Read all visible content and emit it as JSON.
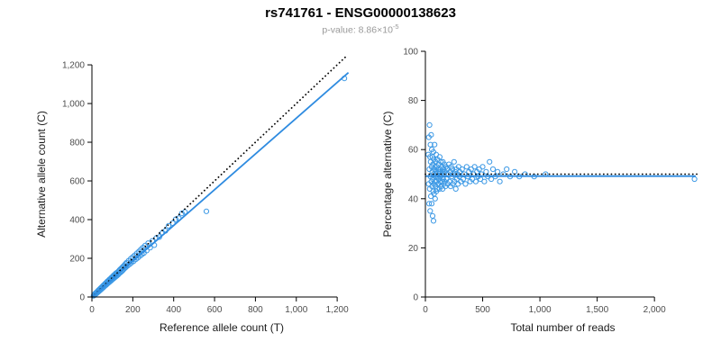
{
  "header": {
    "title": "rs741761 - ENSG00000138623",
    "pvalue_prefix": "p-value: 8.86×10",
    "pvalue_exponent": "-5"
  },
  "colors": {
    "point": "#3d99e5",
    "regression": "#2e8be0",
    "identity": "#000000",
    "tick_text": "#4d4d4d",
    "axis_line": "#000000",
    "subtitle": "#999999"
  },
  "chart_data": [
    {
      "type": "scatter",
      "name": "allele-counts-scatter",
      "xlabel": "Reference allele count (T)",
      "ylabel": "Alternative allele count (C)",
      "xlim": [
        0,
        1270
      ],
      "ylim": [
        0,
        1270
      ],
      "xticks": {
        "values": [
          0,
          200,
          400,
          600,
          800,
          1000,
          1200
        ],
        "labels": [
          "0",
          "200",
          "400",
          "600",
          "800",
          "1,000",
          "1,200"
        ]
      },
      "yticks": {
        "values": [
          0,
          200,
          400,
          600,
          800,
          1000,
          1200
        ],
        "labels": [
          "0",
          "200",
          "400",
          "600",
          "800",
          "1,000",
          "1,200"
        ]
      },
      "grid": false,
      "legend": "none",
      "points": [
        [
          8,
          6
        ],
        [
          10,
          11
        ],
        [
          12,
          9
        ],
        [
          14,
          15
        ],
        [
          15,
          12
        ],
        [
          16,
          18
        ],
        [
          18,
          15
        ],
        [
          20,
          21
        ],
        [
          21,
          17
        ],
        [
          22,
          24
        ],
        [
          24,
          20
        ],
        [
          25,
          27
        ],
        [
          26,
          22
        ],
        [
          28,
          29
        ],
        [
          30,
          25
        ],
        [
          30,
          33
        ],
        [
          32,
          28
        ],
        [
          34,
          36
        ],
        [
          35,
          30
        ],
        [
          36,
          39
        ],
        [
          38,
          33
        ],
        [
          40,
          42
        ],
        [
          41,
          36
        ],
        [
          42,
          45
        ],
        [
          44,
          38
        ],
        [
          45,
          48
        ],
        [
          46,
          41
        ],
        [
          48,
          51
        ],
        [
          50,
          44
        ],
        [
          51,
          54
        ],
        [
          52,
          47
        ],
        [
          54,
          57
        ],
        [
          55,
          49
        ],
        [
          56,
          60
        ],
        [
          58,
          52
        ],
        [
          60,
          63
        ],
        [
          61,
          55
        ],
        [
          62,
          66
        ],
        [
          64,
          58
        ],
        [
          65,
          69
        ],
        [
          66,
          60
        ],
        [
          68,
          72
        ],
        [
          70,
          63
        ],
        [
          71,
          75
        ],
        [
          72,
          66
        ],
        [
          74,
          78
        ],
        [
          75,
          68
        ],
        [
          76,
          81
        ],
        [
          78,
          71
        ],
        [
          80,
          84
        ],
        [
          82,
          74
        ],
        [
          84,
          88
        ],
        [
          85,
          77
        ],
        [
          86,
          91
        ],
        [
          88,
          80
        ],
        [
          90,
          94
        ],
        [
          92,
          83
        ],
        [
          94,
          98
        ],
        [
          95,
          86
        ],
        [
          96,
          101
        ],
        [
          98,
          89
        ],
        [
          100,
          104
        ],
        [
          102,
          92
        ],
        [
          104,
          108
        ],
        [
          105,
          95
        ],
        [
          106,
          111
        ],
        [
          108,
          98
        ],
        [
          110,
          114
        ],
        [
          112,
          101
        ],
        [
          114,
          118
        ],
        [
          115,
          104
        ],
        [
          116,
          121
        ],
        [
          118,
          107
        ],
        [
          120,
          124
        ],
        [
          122,
          110
        ],
        [
          125,
          128
        ],
        [
          128,
          115
        ],
        [
          130,
          133
        ],
        [
          132,
          120
        ],
        [
          135,
          139
        ],
        [
          138,
          125
        ],
        [
          140,
          144
        ],
        [
          143,
          130
        ],
        [
          145,
          150
        ],
        [
          148,
          135
        ],
        [
          150,
          155
        ],
        [
          153,
          140
        ],
        [
          155,
          160
        ],
        [
          158,
          146
        ],
        [
          160,
          166
        ],
        [
          163,
          151
        ],
        [
          165,
          172
        ],
        [
          168,
          156
        ],
        [
          170,
          178
        ],
        [
          175,
          162
        ],
        [
          180,
          188
        ],
        [
          185,
          170
        ],
        [
          190,
          198
        ],
        [
          195,
          178
        ],
        [
          200,
          207
        ],
        [
          205,
          186
        ],
        [
          210,
          216
        ],
        [
          215,
          195
        ],
        [
          220,
          226
        ],
        [
          225,
          203
        ],
        [
          230,
          236
        ],
        [
          235,
          212
        ],
        [
          240,
          246
        ],
        [
          245,
          220
        ],
        [
          250,
          256
        ],
        [
          255,
          228
        ],
        [
          260,
          266
        ],
        [
          268,
          240
        ],
        [
          275,
          278
        ],
        [
          285,
          255
        ],
        [
          295,
          290
        ],
        [
          305,
          268
        ],
        [
          315,
          305
        ],
        [
          330,
          310
        ],
        [
          345,
          332
        ],
        [
          360,
          342
        ],
        [
          375,
          368
        ],
        [
          395,
          382
        ],
        [
          410,
          402
        ],
        [
          425,
          408
        ],
        [
          440,
          432
        ],
        [
          455,
          440
        ],
        [
          560,
          443
        ],
        [
          1235,
          1130
        ]
      ],
      "lines": [
        {
          "role": "identity",
          "style": "dotted",
          "color": "#000000",
          "from": [
            0,
            0
          ],
          "to": [
            1250,
            1250
          ]
        },
        {
          "role": "regression",
          "style": "solid",
          "color": "#2e8be0",
          "from": [
            0,
            0
          ],
          "to": [
            1255,
            1160
          ]
        }
      ]
    },
    {
      "type": "scatter",
      "name": "percentage-alternative-scatter",
      "xlabel": "Total number of reads",
      "ylabel": "Percentage alternative (C)",
      "xlim": [
        0,
        2400
      ],
      "ylim": [
        0,
        100
      ],
      "xticks": {
        "values": [
          0,
          500,
          1000,
          1500,
          2000
        ],
        "labels": [
          "0",
          "500",
          "1,000",
          "1,500",
          "2,000"
        ]
      },
      "yticks": {
        "values": [
          0,
          20,
          40,
          60,
          80,
          100
        ],
        "labels": [
          "0",
          "20",
          "40",
          "60",
          "80",
          "100"
        ]
      },
      "grid": false,
      "legend": "none",
      "points": [
        [
          25,
          58
        ],
        [
          28,
          46
        ],
        [
          30,
          65
        ],
        [
          32,
          38
        ],
        [
          35,
          52
        ],
        [
          36,
          70
        ],
        [
          38,
          44
        ],
        [
          40,
          57
        ],
        [
          42,
          35
        ],
        [
          44,
          62
        ],
        [
          45,
          49
        ],
        [
          46,
          55
        ],
        [
          48,
          41
        ],
        [
          50,
          66
        ],
        [
          52,
          47
        ],
        [
          54,
          53
        ],
        [
          55,
          38
        ],
        [
          56,
          60
        ],
        [
          58,
          45
        ],
        [
          60,
          51
        ],
        [
          62,
          57
        ],
        [
          63,
          33
        ],
        [
          64,
          48
        ],
        [
          66,
          54
        ],
        [
          68,
          43
        ],
        [
          70,
          59
        ],
        [
          71,
          31
        ],
        [
          72,
          50
        ],
        [
          74,
          46
        ],
        [
          75,
          56
        ],
        [
          76,
          42
        ],
        [
          78,
          52
        ],
        [
          80,
          62
        ],
        [
          82,
          47
        ],
        [
          84,
          53
        ],
        [
          85,
          40
        ],
        [
          86,
          49
        ],
        [
          88,
          55
        ],
        [
          90,
          45
        ],
        [
          92,
          51
        ],
        [
          94,
          58
        ],
        [
          95,
          43
        ],
        [
          96,
          50
        ],
        [
          98,
          47
        ],
        [
          100,
          53
        ],
        [
          103,
          44
        ],
        [
          105,
          56
        ],
        [
          108,
          49
        ],
        [
          110,
          52
        ],
        [
          113,
          46
        ],
        [
          115,
          54
        ],
        [
          118,
          48
        ],
        [
          120,
          51
        ],
        [
          123,
          44
        ],
        [
          125,
          57
        ],
        [
          128,
          47
        ],
        [
          130,
          52
        ],
        [
          133,
          49
        ],
        [
          135,
          55
        ],
        [
          138,
          45
        ],
        [
          140,
          50
        ],
        [
          143,
          53
        ],
        [
          145,
          47
        ],
        [
          148,
          51
        ],
        [
          150,
          44
        ],
        [
          153,
          55
        ],
        [
          155,
          48
        ],
        [
          158,
          52
        ],
        [
          160,
          46
        ],
        [
          163,
          50
        ],
        [
          165,
          54
        ],
        [
          168,
          47
        ],
        [
          170,
          51
        ],
        [
          175,
          45
        ],
        [
          180,
          53
        ],
        [
          185,
          48
        ],
        [
          190,
          52
        ],
        [
          195,
          46
        ],
        [
          200,
          50
        ],
        [
          205,
          54
        ],
        [
          210,
          47
        ],
        [
          215,
          51
        ],
        [
          220,
          45
        ],
        [
          225,
          53
        ],
        [
          230,
          49
        ],
        [
          235,
          52
        ],
        [
          240,
          46
        ],
        [
          245,
          50
        ],
        [
          250,
          55
        ],
        [
          255,
          47
        ],
        [
          260,
          51
        ],
        [
          265,
          44
        ],
        [
          270,
          52
        ],
        [
          275,
          48
        ],
        [
          280,
          50
        ],
        [
          285,
          46
        ],
        [
          290,
          53
        ],
        [
          295,
          49
        ],
        [
          300,
          51
        ],
        [
          310,
          47
        ],
        [
          320,
          52
        ],
        [
          330,
          48
        ],
        [
          340,
          50
        ],
        [
          350,
          46
        ],
        [
          360,
          53
        ],
        [
          370,
          49
        ],
        [
          380,
          51
        ],
        [
          390,
          47
        ],
        [
          400,
          52
        ],
        [
          410,
          48
        ],
        [
          420,
          50
        ],
        [
          430,
          53
        ],
        [
          440,
          47
        ],
        [
          450,
          51
        ],
        [
          460,
          49
        ],
        [
          470,
          52
        ],
        [
          480,
          48
        ],
        [
          490,
          50
        ],
        [
          500,
          53
        ],
        [
          515,
          47
        ],
        [
          530,
          51
        ],
        [
          545,
          49
        ],
        [
          560,
          55
        ],
        [
          575,
          48
        ],
        [
          590,
          52
        ],
        [
          610,
          49
        ],
        [
          630,
          51
        ],
        [
          650,
          47
        ],
        [
          680,
          50
        ],
        [
          710,
          52
        ],
        [
          740,
          49
        ],
        [
          780,
          51
        ],
        [
          820,
          49
        ],
        [
          870,
          50
        ],
        [
          950,
          49
        ],
        [
          1050,
          50
        ],
        [
          2350,
          48
        ]
      ],
      "lines": [
        {
          "role": "identity",
          "style": "dotted",
          "color": "#000000",
          "from": [
            0,
            50
          ],
          "to": [
            2400,
            50
          ]
        },
        {
          "role": "regression",
          "style": "solid",
          "color": "#2e8be0",
          "from": [
            0,
            49.2
          ],
          "to": [
            2360,
            49.2
          ]
        }
      ]
    }
  ]
}
